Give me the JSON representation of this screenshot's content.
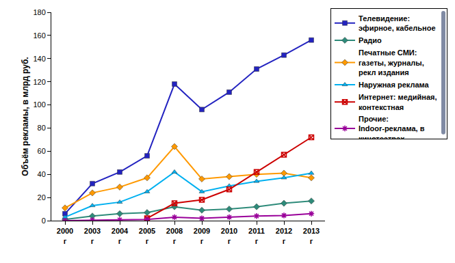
{
  "chart_data": {
    "type": "line",
    "y_label": "Объём рекламы, в млрд руб.",
    "categories": [
      "2000 г",
      "2003 г",
      "2004 г",
      "2005 г",
      "2008 г",
      "2009 г",
      "2010 г",
      "2011 г",
      "2012 г",
      "2013 г"
    ],
    "ylim": [
      0,
      180
    ],
    "yticks": [
      0,
      20,
      40,
      60,
      80,
      100,
      120,
      140,
      160,
      180
    ],
    "grid": false,
    "legend": "right",
    "series": [
      {
        "name": "Телевидение: эфирное, кабельное",
        "color": "#2323c0",
        "marker": "square",
        "values": [
          6,
          32,
          42,
          56,
          118,
          96,
          111,
          131,
          143,
          156
        ]
      },
      {
        "name": "Радио",
        "color": "#2e8b7a",
        "marker": "diamond",
        "values": [
          1,
          4,
          6,
          7,
          12,
          9,
          10,
          12,
          15,
          17
        ]
      },
      {
        "name": "Печатные СМИ: газеты, журналы, рекл издания",
        "color": "#ff9900",
        "marker": "diamond",
        "values": [
          11,
          24,
          29,
          37,
          64,
          36,
          38,
          40,
          41,
          37
        ]
      },
      {
        "name": "Наружная реклама",
        "color": "#00b0f0",
        "marker": "triangle",
        "values": [
          3,
          13,
          16,
          25,
          42,
          25,
          30,
          34,
          37,
          41
        ]
      },
      {
        "name": "Интернет: медийная, контекстная",
        "color": "#cc0000",
        "marker": "square-x",
        "values": [
          null,
          null,
          null,
          2,
          15,
          18,
          27,
          42,
          57,
          72
        ]
      },
      {
        "name": "Прочие:  Indoor-реклама, в кинотеатрах",
        "color": "#990099",
        "marker": "asterisk",
        "values": [
          0,
          0.5,
          0.8,
          1,
          3,
          2,
          3,
          4,
          4.5,
          6
        ]
      }
    ]
  }
}
